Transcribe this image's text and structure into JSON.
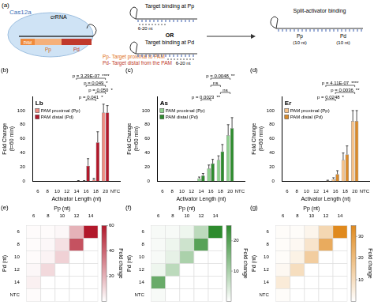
{
  "diagram": {
    "panel": "(a)",
    "protein": "Cas12a",
    "guide": "crRNA",
    "pam": "PAM",
    "pp": "Pp",
    "pd": "Pd",
    "key": [
      "Pp- Target proximal to PAM",
      "Pd- Target distal from the PAM"
    ],
    "modes": [
      {
        "text": "Target binding at Pp",
        "length": "6-20 nt"
      },
      {
        "text": "Target binding at Pd",
        "length": "6-20 nt"
      }
    ],
    "or": "OR",
    "split": {
      "text": "Split-activator binding",
      "parts": [
        {
          "name": "Pp",
          "length": "(10 nt)"
        },
        {
          "name": "Pd",
          "length": "(10 nt)"
        }
      ]
    }
  },
  "chart_data": [
    {
      "type": "bar",
      "panel": "(b)",
      "title": "Lb",
      "x_label": "Activator Length (nt)",
      "y_label": [
        "Fold Change",
        "(t=60 min)"
      ],
      "categories": [
        "6",
        "8",
        "10",
        "12",
        "14",
        "16",
        "18",
        "20",
        "NTC"
      ],
      "series": [
        {
          "name": "PAM proximal (Pp)",
          "color": "#f08c82",
          "values": [
            0,
            0,
            0,
            0,
            0,
            0.5,
            2,
            97,
            0
          ],
          "errors": [
            0,
            0,
            0,
            0,
            0,
            0.5,
            2,
            12,
            0
          ]
        },
        {
          "name": "PAM distal (Pd)",
          "color": "#b2182b",
          "values": [
            0,
            0,
            0,
            0,
            0.5,
            22,
            55,
            97,
            0
          ],
          "errors": [
            0,
            0,
            0,
            0,
            0.5,
            10,
            15,
            10,
            0
          ]
        }
      ],
      "ylim": [
        0,
        120
      ],
      "yticks": [
        0,
        20,
        40,
        60,
        80,
        100
      ],
      "grid": false,
      "legend": "upper left",
      "annotations": [
        {
          "p": "p = 0.041",
          "stars": "*",
          "from": "16",
          "to": "18"
        },
        {
          "p": "p = 0.050",
          "stars": "*",
          "from": "18",
          "to": "20"
        },
        {
          "p": "p = 0.049",
          "stars": "*",
          "from": "16",
          "to": "20"
        },
        {
          "p": "p = 3.29E-07",
          "stars": "****",
          "from": "14",
          "to": "20"
        }
      ]
    },
    {
      "type": "bar",
      "panel": "(c)",
      "title": "As",
      "x_label": "Activator Length (nt)",
      "y_label": [
        "Fold Change",
        "(t=60 min)"
      ],
      "categories": [
        "6",
        "8",
        "10",
        "12",
        "14",
        "16",
        "18",
        "20",
        "NTC"
      ],
      "series": [
        {
          "name": "PAM proximal (Pp)",
          "color": "#8fd18f",
          "values": [
            0,
            0,
            0,
            0,
            4,
            18,
            30,
            65,
            0
          ],
          "errors": [
            0,
            0,
            0,
            0,
            2,
            5,
            6,
            15,
            0
          ]
        },
        {
          "name": "PAM distal (Pd)",
          "color": "#2e8b2e",
          "values": [
            0,
            0,
            0,
            0,
            8,
            25,
            42,
            75,
            0
          ],
          "errors": [
            0,
            0,
            0,
            0,
            3,
            6,
            10,
            15,
            0
          ]
        }
      ],
      "ylim": [
        0,
        120
      ],
      "yticks": [
        0,
        20,
        40,
        60,
        80,
        100
      ],
      "grid": false,
      "legend": "upper left",
      "annotations": [
        {
          "p": "p = 0.0023",
          "stars": "**",
          "from": "14",
          "to": "16"
        },
        {
          "stars": "ns",
          "from": "18",
          "to": "20"
        },
        {
          "stars": "ns",
          "from": "16",
          "to": "18"
        },
        {
          "p": "p = 0.0048",
          "stars": "**",
          "from": "16",
          "to": "20"
        }
      ]
    },
    {
      "type": "bar",
      "panel": "(d)",
      "title": "Er",
      "x_label": "Activator Length (nt)",
      "y_label": [
        "Fold Change",
        "(t=60 min)"
      ],
      "categories": [
        "6",
        "8",
        "10",
        "12",
        "14",
        "16",
        "18",
        "20",
        "NTC"
      ],
      "series": [
        {
          "name": "PAM proximal (Pp)",
          "color": "#f5c28a",
          "values": [
            0,
            0,
            0,
            0,
            0,
            3,
            30,
            85,
            0
          ],
          "errors": [
            0,
            0,
            0,
            0,
            0,
            2,
            10,
            15,
            0
          ]
        },
        {
          "name": "PAM distal (Pd)",
          "color": "#d98a2b",
          "values": [
            0,
            0,
            0,
            0,
            1,
            10,
            38,
            85,
            0
          ],
          "errors": [
            0,
            0,
            0,
            0,
            0.5,
            5,
            12,
            15,
            0
          ]
        }
      ],
      "ylim": [
        0,
        120
      ],
      "yticks": [
        0,
        20,
        40,
        60,
        80,
        100
      ],
      "grid": false,
      "legend": "upper left",
      "annotations": [
        {
          "p": "p = 0.0248",
          "stars": "*",
          "from": "14",
          "to": "16"
        },
        {
          "p": "p = 0.0036",
          "stars": "**",
          "from": "16",
          "to": "20"
        },
        {
          "p": "p = 4.11E-07",
          "stars": "****",
          "from": "14",
          "to": "20"
        }
      ]
    },
    {
      "type": "heatmap",
      "panel": "(e)",
      "x_label": "Pp (nt)",
      "y_label": "Pd (nt)",
      "x_categories": [
        "6",
        "8",
        "10",
        "12",
        "14"
      ],
      "y_categories": [
        "6",
        "8",
        "10",
        "12",
        "14",
        "NTC"
      ],
      "cells": [
        [
          1,
          1,
          2,
          20,
          60
        ],
        [
          1,
          2,
          8,
          45,
          null
        ],
        [
          1,
          3,
          12,
          null,
          null
        ],
        [
          2,
          10,
          null,
          null,
          null
        ],
        [
          4,
          null,
          null,
          null,
          null
        ],
        [
          1,
          null,
          null,
          null,
          null
        ]
      ],
      "color": "#b2182b",
      "colorbar": {
        "label": "Fold change",
        "range": [
          0,
          60
        ],
        "ticks": [
          20,
          40,
          60
        ]
      }
    },
    {
      "type": "heatmap",
      "panel": "(f)",
      "x_label": "Pp (nt)",
      "y_label": "Pd (nt)",
      "x_categories": [
        "6",
        "8",
        "10",
        "12",
        "14"
      ],
      "y_categories": [
        "6",
        "8",
        "10",
        "12",
        "14",
        "NTC"
      ],
      "cells": [
        [
          1,
          1,
          2,
          8,
          25
        ],
        [
          1,
          2,
          6,
          20,
          null
        ],
        [
          1,
          3,
          10,
          null,
          null
        ],
        [
          2,
          8,
          null,
          null,
          null
        ],
        [
          18,
          null,
          null,
          null,
          null
        ],
        [
          1,
          null,
          null,
          null,
          null
        ]
      ],
      "color": "#2e8b2e",
      "colorbar": {
        "label": "Fold change",
        "range": [
          0,
          25
        ],
        "ticks": [
          10,
          20
        ]
      }
    },
    {
      "type": "heatmap",
      "panel": "(g)",
      "x_label": "Pp (nt)",
      "y_label": "Pd (nt)",
      "x_categories": [
        "6",
        "8",
        "10",
        "12",
        "14"
      ],
      "y_categories": [
        "6",
        "8",
        "10",
        "12",
        "14",
        "NTC"
      ],
      "cells": [
        [
          1,
          1,
          3,
          12,
          35
        ],
        [
          1,
          2,
          8,
          25,
          null
        ],
        [
          1,
          4,
          15,
          null,
          null
        ],
        [
          2,
          10,
          null,
          null,
          null
        ],
        [
          6,
          null,
          null,
          null,
          null
        ],
        [
          1,
          null,
          null,
          null,
          null
        ]
      ],
      "color": "#e08a1e",
      "colorbar": {
        "label": "Fold change",
        "range": [
          0,
          35
        ],
        "ticks": [
          10,
          20,
          30
        ]
      }
    }
  ]
}
